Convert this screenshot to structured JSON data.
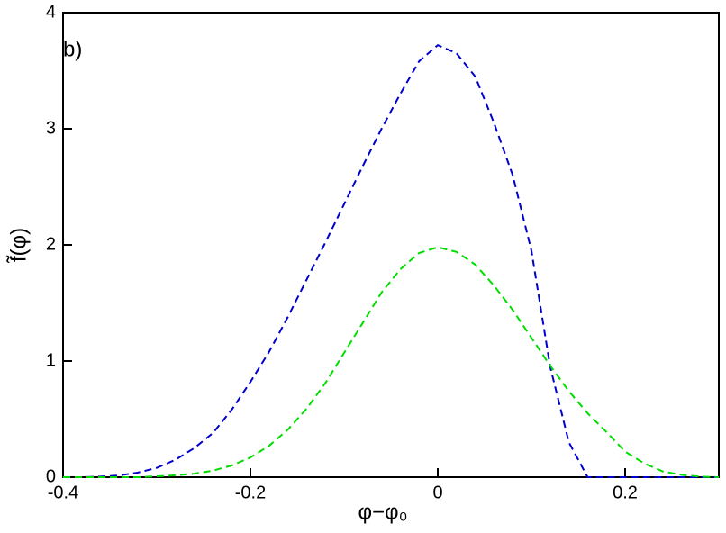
{
  "chart_data": {
    "type": "line",
    "xlabel": "φ−φ₀",
    "ylabel": "f̃(φ)",
    "annotation": "b)",
    "x": [
      -0.4,
      -0.38,
      -0.36,
      -0.34,
      -0.32,
      -0.3,
      -0.28,
      -0.26,
      -0.24,
      -0.22,
      -0.2,
      -0.18,
      -0.16,
      -0.14,
      -0.12,
      -0.1,
      -0.08,
      -0.06,
      -0.04,
      -0.02,
      0,
      0.02,
      0.04,
      0.06,
      0.08,
      0.1,
      0.12,
      0.14,
      0.16,
      0.18,
      0.2,
      0.22,
      0.24,
      0.26,
      0.28,
      0.3
    ],
    "series": [
      {
        "color": "#0000cc",
        "values": [
          0,
          0,
          0.005,
          0.015,
          0.04,
          0.08,
          0.15,
          0.25,
          0.38,
          0.58,
          0.82,
          1.08,
          1.38,
          1.7,
          2.02,
          2.35,
          2.68,
          3.0,
          3.3,
          3.58,
          3.72,
          3.65,
          3.45,
          3.05,
          2.6,
          1.95,
          0.95,
          0.3,
          0,
          0,
          0,
          0,
          0,
          0,
          0,
          0
        ]
      },
      {
        "color": "#00dd00",
        "values": [
          0,
          0,
          0,
          0,
          0,
          0.008,
          0.016,
          0.03,
          0.056,
          0.1,
          0.17,
          0.27,
          0.41,
          0.59,
          0.81,
          1.07,
          1.33,
          1.59,
          1.79,
          1.93,
          1.98,
          1.94,
          1.83,
          1.65,
          1.44,
          1.2,
          0.96,
          0.74,
          0.55,
          0.39,
          0.22,
          0.12,
          0.05,
          0.02,
          0.005,
          0
        ]
      }
    ],
    "xlim": [
      -0.4,
      0.3
    ],
    "xticks": [
      -0.4,
      -0.2,
      0,
      0.2
    ],
    "ylim": [
      0,
      4
    ],
    "yticks": [
      0,
      1,
      2,
      3,
      4
    ],
    "dashed": true
  }
}
